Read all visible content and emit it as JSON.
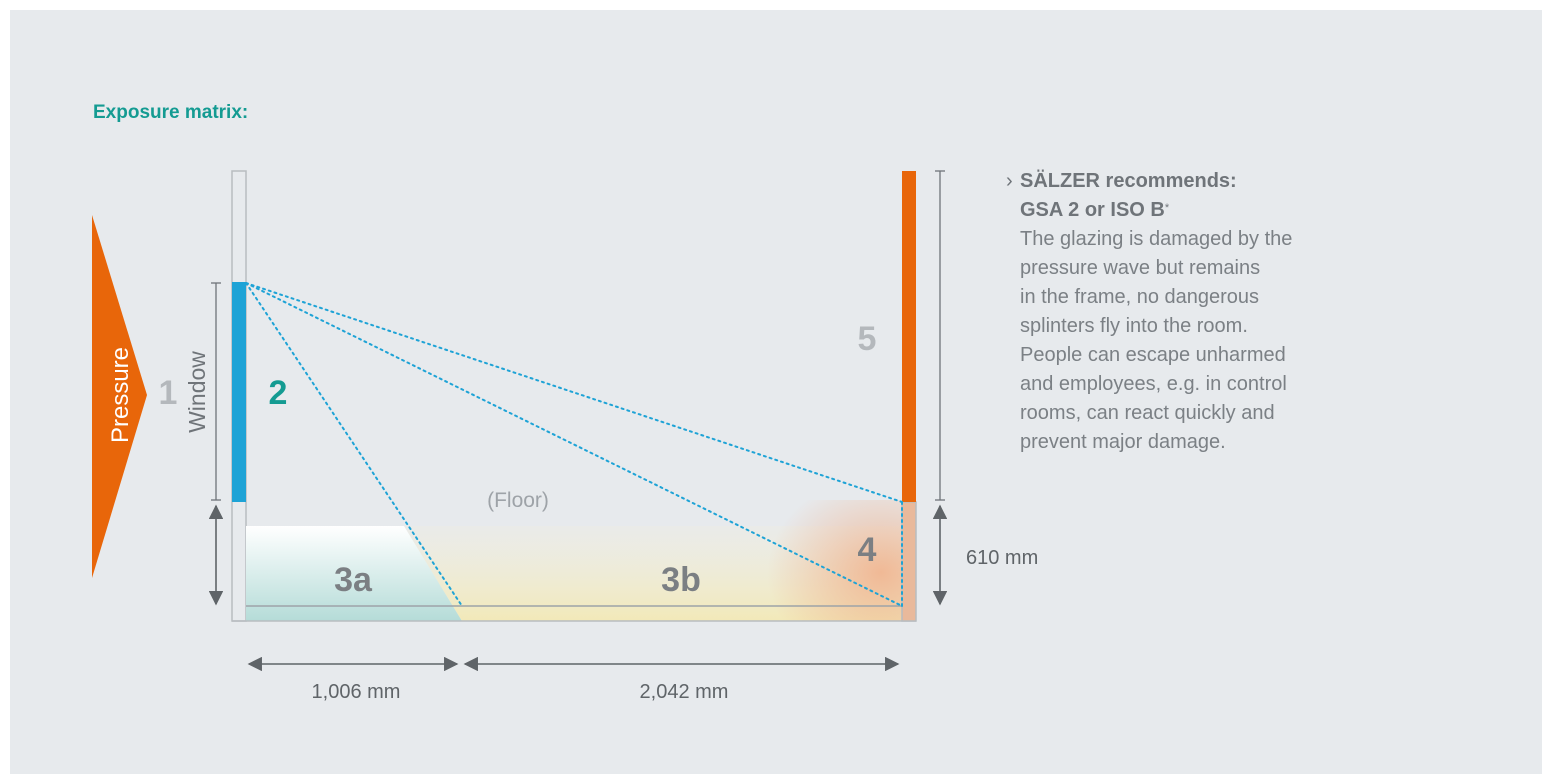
{
  "heading": "Exposure matrix:",
  "labels": {
    "pressure": "Pressure",
    "window": "Window",
    "floor": "(Floor)",
    "zone_1": "1",
    "zone_2": "2",
    "zone_3a": "3a",
    "zone_3b": "3b",
    "zone_4": "4",
    "zone_5": "5"
  },
  "dimensions": {
    "distance_1": "1,006 mm",
    "distance_2": "2,042 mm",
    "height": "610 mm"
  },
  "recommendation": {
    "caret": "›",
    "title": "SÄLZER recommends:",
    "subtitle": "GSA 2 or ISO B",
    "footnote_mark": "*",
    "body_lines": [
      "The glazing is damaged by the",
      "pressure wave but remains",
      "in the frame, no dangerous",
      "splinters fly into the room.",
      "People can escape unharmed",
      "and employees, e.g. in control",
      "rooms, can react quickly and",
      "prevent major damage."
    ]
  },
  "colors": {
    "background": "#e7eaed",
    "accent_teal": "#149b92",
    "pressure_orange": "#e8660a",
    "window_blue": "#1ea3d6",
    "zone_label_gray": "#7b7f83",
    "zone_label_light": "#b4b8bc",
    "dim_line_gray": "#5f6468"
  }
}
